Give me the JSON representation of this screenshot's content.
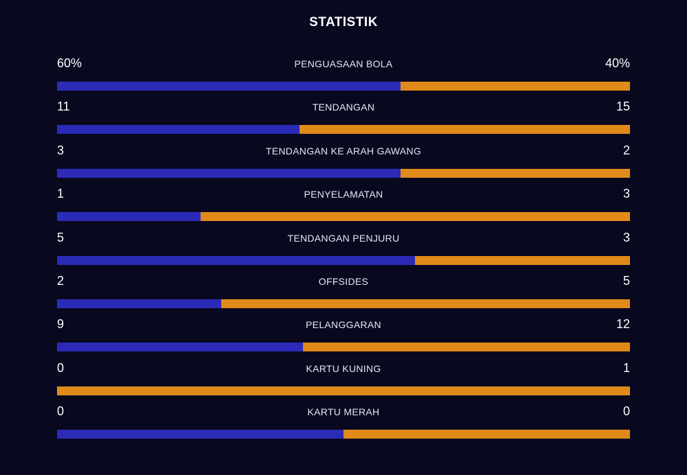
{
  "header": {
    "title": "STATISTIK"
  },
  "colors": {
    "background": "#08081f",
    "home": "#2b2bb8",
    "away": "#e08a1a"
  },
  "stats": [
    {
      "label": "PENGUASAAN BOLA",
      "home": "60%",
      "away": "40%",
      "home_share": 0.6
    },
    {
      "label": "TENDANGAN",
      "home": "11",
      "away": "15",
      "home_share": 0.423
    },
    {
      "label": "TENDANGAN KE ARAH GAWANG",
      "home": "3",
      "away": "2",
      "home_share": 0.6
    },
    {
      "label": "PENYELAMATAN",
      "home": "1",
      "away": "3",
      "home_share": 0.25
    },
    {
      "label": "TENDANGAN PENJURU",
      "home": "5",
      "away": "3",
      "home_share": 0.625
    },
    {
      "label": "OFFSIDES",
      "home": "2",
      "away": "5",
      "home_share": 0.286
    },
    {
      "label": "PELANGGARAN",
      "home": "9",
      "away": "12",
      "home_share": 0.429
    },
    {
      "label": "KARTU KUNING",
      "home": "0",
      "away": "1",
      "home_share": 0.0
    },
    {
      "label": "KARTU MERAH",
      "home": "0",
      "away": "0",
      "home_share": 0.5
    }
  ]
}
